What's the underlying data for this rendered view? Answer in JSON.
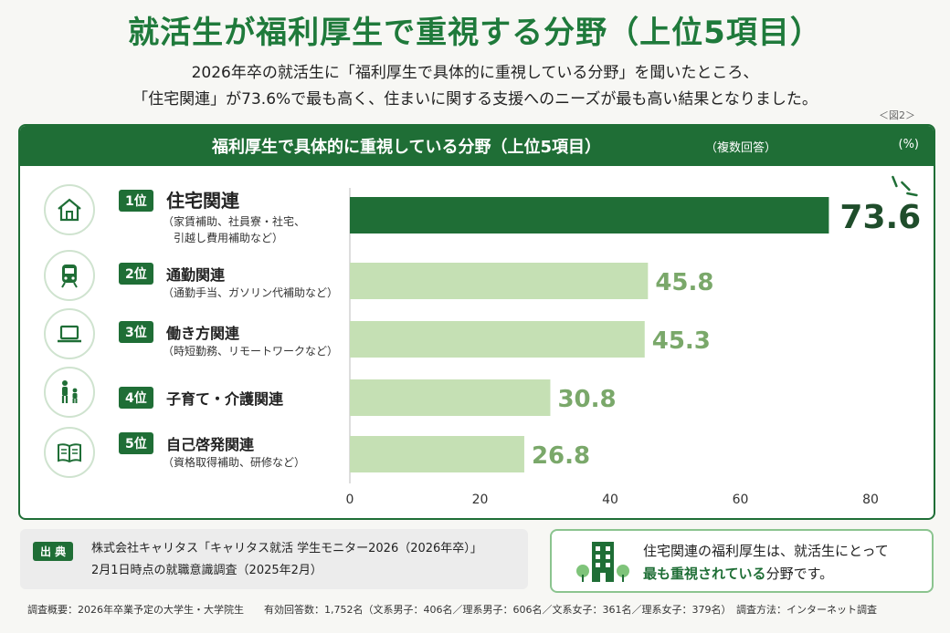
{
  "title": "就活生が福利厚生で重視する分野（上位5項目）",
  "lead_line1": "2026年卒の就活生に「福利厚生で具体的に重視している分野」を聞いたところ、",
  "lead_line2": "「住宅関連」が73.6%で最も高く、住まいに関する支援へのニーズが最も高い結果となりました。",
  "figure_no": "＜図2＞",
  "card_title": "福利厚生で具体的に重視している分野（上位5項目）",
  "card_note": "（複数回答）",
  "card_unit": "(%)",
  "items": [
    {
      "rank": "1位",
      "name": "住宅関連",
      "sub1": "（家賃補助、社員寮・社宅、",
      "sub2": "　引越し費用補助など）",
      "icon": "house-icon"
    },
    {
      "rank": "2位",
      "name": "通勤関連",
      "sub1": "（通勤手当、ガソリン代補助など）",
      "sub2": "",
      "icon": "train-icon"
    },
    {
      "rank": "3位",
      "name": "働き方関連",
      "sub1": "（時短勤務、リモートワークなど）",
      "sub2": "",
      "icon": "laptop-icon"
    },
    {
      "rank": "4位",
      "name": "子育て・介護関連",
      "sub1": "",
      "sub2": "",
      "icon": "parent-child-icon"
    },
    {
      "rank": "5位",
      "name": "自己啓発関連",
      "sub1": "（資格取得補助、研修など）",
      "sub2": "",
      "icon": "book-icon"
    }
  ],
  "chart_data": {
    "type": "bar",
    "orientation": "horizontal",
    "categories": [
      "住宅関連",
      "通勤関連",
      "働き方関連",
      "子育て・介護関連",
      "自己啓発関連"
    ],
    "values": [
      73.6,
      45.8,
      45.3,
      30.8,
      26.8
    ],
    "value_labels": [
      "73.6",
      "45.8",
      "45.3",
      "30.8",
      "26.8"
    ],
    "xlim": [
      0,
      80
    ],
    "xticks": [
      "0",
      "20",
      "40",
      "60",
      "80"
    ],
    "grid": false,
    "colors": {
      "highlight": "#1f6e36",
      "normal": "#c5e0b4",
      "label_highlight": "#1f4d2b",
      "label_normal": "#7aa86a"
    }
  },
  "source_tag": "出 典",
  "source_line1": "株式会社キャリタス「キャリタス就活 学生モニター2026（2026年卒）」",
  "source_line2": "2月1日時点の就職意識調査（2025年2月）",
  "message_line1": "住宅関連の福利厚生は、就活生にとって",
  "message_line2_em": "最も重視されている",
  "message_line2_rest": "分野です。",
  "footer": "調査概要：2026年卒業予定の大学生・大学院生　　有効回答数：1,752名（文系男子：406名／理系男子：606名／文系女子：361名／理系女子：379名）　調査方法：インターネット調査",
  "accent_color": "#1f6e36"
}
